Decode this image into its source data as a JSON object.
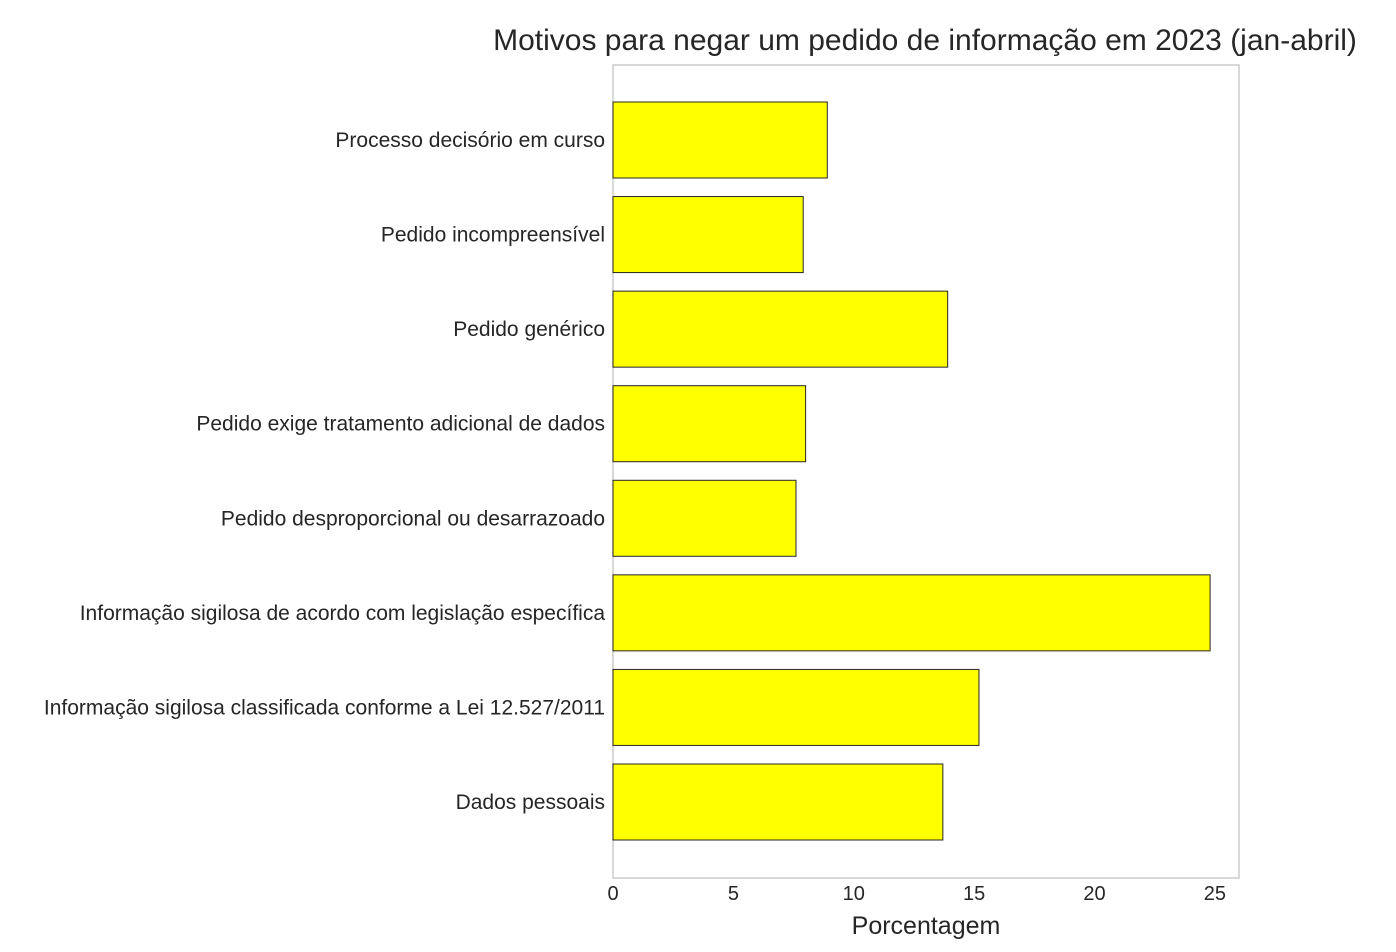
{
  "chart_data": {
    "type": "bar",
    "orientation": "horizontal",
    "title": "Motivos para negar um pedido de informação em 2023 (jan-abril)",
    "xlabel": "Porcentagem",
    "ylabel": "",
    "xlim": [
      0,
      26
    ],
    "xticks": [
      0,
      5,
      10,
      15,
      20,
      25
    ],
    "grid": false,
    "bar_color": "#ffff00",
    "categories": [
      "Processo decisório em curso",
      "Pedido incompreensível",
      "Pedido genérico",
      "Pedido exige tratamento adicional de dados",
      "Pedido desproporcional ou desarrazoado",
      "Informação sigilosa de acordo com legislação específica",
      "Informação sigilosa classificada conforme a Lei 12.527/2011",
      "Dados pessoais"
    ],
    "values": [
      8.9,
      7.9,
      13.9,
      8.0,
      7.6,
      24.8,
      15.2,
      13.7
    ]
  }
}
